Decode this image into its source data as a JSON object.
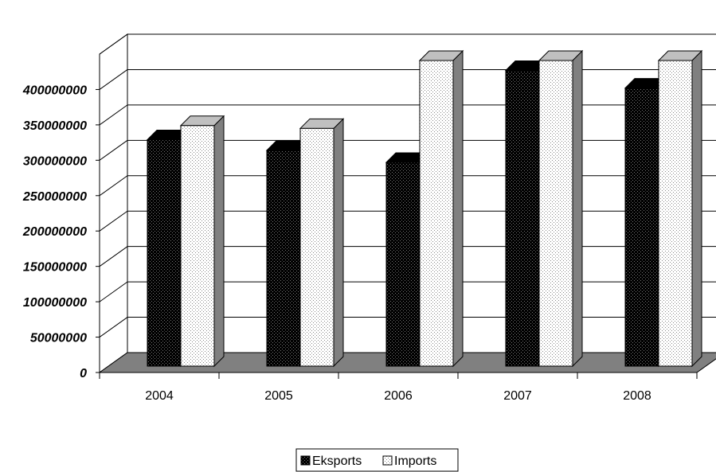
{
  "chart_data": {
    "type": "bar",
    "categories": [
      "2004",
      "2005",
      "2006",
      "2007",
      "2008"
    ],
    "series": [
      {
        "name": "Eksports",
        "values": [
          320000000,
          305000000,
          288000000,
          418000000,
          393000000
        ]
      },
      {
        "name": "Imports",
        "values": [
          340000000,
          336000000,
          432000000,
          432000000,
          432000000
        ]
      }
    ],
    "y_ticks": [
      "0",
      "50000000",
      "100000000",
      "150000000",
      "200000000",
      "250000000",
      "300000000",
      "350000000",
      "400000000"
    ],
    "ylim": [
      0,
      450000000
    ],
    "grid": true,
    "legend": "bottom-center"
  }
}
